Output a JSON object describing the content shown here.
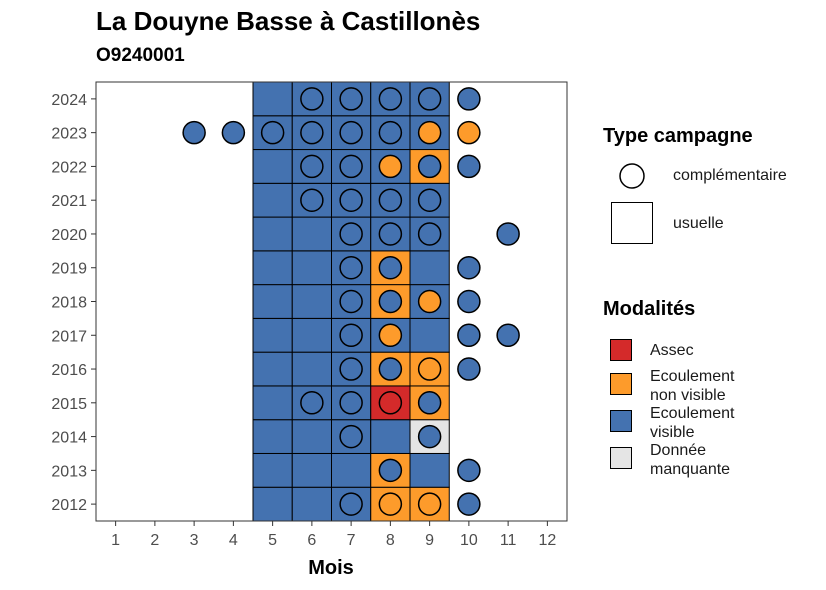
{
  "title": "La Douyne Basse à Castillonès",
  "subtitle": "O9240001",
  "chart_data": {
    "type": "heatmap",
    "xlabel": "Mois",
    "ylabel": "",
    "x_ticks": [
      "1",
      "2",
      "3",
      "4",
      "5",
      "6",
      "7",
      "8",
      "9",
      "10",
      "11",
      "12"
    ],
    "y_ticks": [
      "2012",
      "2013",
      "2014",
      "2015",
      "2016",
      "2017",
      "2018",
      "2019",
      "2020",
      "2021",
      "2022",
      "2023",
      "2024"
    ],
    "xlim": [
      0.5,
      12.5
    ],
    "ylim": [
      2011.5,
      2024.5
    ],
    "colors": {
      "Assec": "#d42a2a",
      "Ecoulement non visible": "#fd9b2b",
      "Ecoulement visible": "#4472b0",
      "Donnée manquante": "#e5e5e5"
    },
    "cells": [
      {
        "year": 2012,
        "month": 5,
        "mod": "Ecoulement visible",
        "type": "usuelle"
      },
      {
        "year": 2012,
        "month": 6,
        "mod": "Ecoulement visible",
        "type": "usuelle"
      },
      {
        "year": 2012,
        "month": 7,
        "mod": "Ecoulement visible",
        "type": "usuelle"
      },
      {
        "year": 2012,
        "month": 8,
        "mod": "Ecoulement non visible",
        "type": "usuelle"
      },
      {
        "year": 2012,
        "month": 9,
        "mod": "Ecoulement non visible",
        "type": "usuelle"
      },
      {
        "year": 2013,
        "month": 5,
        "mod": "Ecoulement visible",
        "type": "usuelle"
      },
      {
        "year": 2013,
        "month": 6,
        "mod": "Ecoulement visible",
        "type": "usuelle"
      },
      {
        "year": 2013,
        "month": 7,
        "mod": "Ecoulement visible",
        "type": "usuelle"
      },
      {
        "year": 2013,
        "month": 8,
        "mod": "Ecoulement non visible",
        "type": "usuelle"
      },
      {
        "year": 2013,
        "month": 9,
        "mod": "Ecoulement visible",
        "type": "usuelle"
      },
      {
        "year": 2014,
        "month": 5,
        "mod": "Ecoulement visible",
        "type": "usuelle"
      },
      {
        "year": 2014,
        "month": 6,
        "mod": "Ecoulement visible",
        "type": "usuelle"
      },
      {
        "year": 2014,
        "month": 7,
        "mod": "Ecoulement visible",
        "type": "usuelle"
      },
      {
        "year": 2014,
        "month": 8,
        "mod": "Ecoulement visible",
        "type": "usuelle"
      },
      {
        "year": 2014,
        "month": 9,
        "mod": "Donnée manquante",
        "type": "usuelle"
      },
      {
        "year": 2015,
        "month": 5,
        "mod": "Ecoulement visible",
        "type": "usuelle"
      },
      {
        "year": 2015,
        "month": 6,
        "mod": "Ecoulement visible",
        "type": "usuelle"
      },
      {
        "year": 2015,
        "month": 7,
        "mod": "Ecoulement visible",
        "type": "usuelle"
      },
      {
        "year": 2015,
        "month": 8,
        "mod": "Assec",
        "type": "usuelle"
      },
      {
        "year": 2015,
        "month": 9,
        "mod": "Ecoulement non visible",
        "type": "usuelle"
      },
      {
        "year": 2016,
        "month": 5,
        "mod": "Ecoulement visible",
        "type": "usuelle"
      },
      {
        "year": 2016,
        "month": 6,
        "mod": "Ecoulement visible",
        "type": "usuelle"
      },
      {
        "year": 2016,
        "month": 7,
        "mod": "Ecoulement visible",
        "type": "usuelle"
      },
      {
        "year": 2016,
        "month": 8,
        "mod": "Ecoulement non visible",
        "type": "usuelle"
      },
      {
        "year": 2016,
        "month": 9,
        "mod": "Ecoulement non visible",
        "type": "usuelle"
      },
      {
        "year": 2017,
        "month": 5,
        "mod": "Ecoulement visible",
        "type": "usuelle"
      },
      {
        "year": 2017,
        "month": 6,
        "mod": "Ecoulement visible",
        "type": "usuelle"
      },
      {
        "year": 2017,
        "month": 7,
        "mod": "Ecoulement visible",
        "type": "usuelle"
      },
      {
        "year": 2017,
        "month": 8,
        "mod": "Ecoulement visible",
        "type": "usuelle"
      },
      {
        "year": 2017,
        "month": 9,
        "mod": "Ecoulement visible",
        "type": "usuelle"
      },
      {
        "year": 2018,
        "month": 5,
        "mod": "Ecoulement visible",
        "type": "usuelle"
      },
      {
        "year": 2018,
        "month": 6,
        "mod": "Ecoulement visible",
        "type": "usuelle"
      },
      {
        "year": 2018,
        "month": 7,
        "mod": "Ecoulement visible",
        "type": "usuelle"
      },
      {
        "year": 2018,
        "month": 8,
        "mod": "Ecoulement non visible",
        "type": "usuelle"
      },
      {
        "year": 2018,
        "month": 9,
        "mod": "Ecoulement visible",
        "type": "usuelle"
      },
      {
        "year": 2019,
        "month": 5,
        "mod": "Ecoulement visible",
        "type": "usuelle"
      },
      {
        "year": 2019,
        "month": 6,
        "mod": "Ecoulement visible",
        "type": "usuelle"
      },
      {
        "year": 2019,
        "month": 7,
        "mod": "Ecoulement visible",
        "type": "usuelle"
      },
      {
        "year": 2019,
        "month": 8,
        "mod": "Ecoulement non visible",
        "type": "usuelle"
      },
      {
        "year": 2019,
        "month": 9,
        "mod": "Ecoulement visible",
        "type": "usuelle"
      },
      {
        "year": 2020,
        "month": 5,
        "mod": "Ecoulement visible",
        "type": "usuelle"
      },
      {
        "year": 2020,
        "month": 6,
        "mod": "Ecoulement visible",
        "type": "usuelle"
      },
      {
        "year": 2020,
        "month": 7,
        "mod": "Ecoulement visible",
        "type": "usuelle"
      },
      {
        "year": 2020,
        "month": 8,
        "mod": "Ecoulement visible",
        "type": "usuelle"
      },
      {
        "year": 2020,
        "month": 9,
        "mod": "Ecoulement visible",
        "type": "usuelle"
      },
      {
        "year": 2021,
        "month": 5,
        "mod": "Ecoulement visible",
        "type": "usuelle"
      },
      {
        "year": 2021,
        "month": 6,
        "mod": "Ecoulement visible",
        "type": "usuelle"
      },
      {
        "year": 2021,
        "month": 7,
        "mod": "Ecoulement visible",
        "type": "usuelle"
      },
      {
        "year": 2021,
        "month": 8,
        "mod": "Ecoulement visible",
        "type": "usuelle"
      },
      {
        "year": 2021,
        "month": 9,
        "mod": "Ecoulement visible",
        "type": "usuelle"
      },
      {
        "year": 2022,
        "month": 5,
        "mod": "Ecoulement visible",
        "type": "usuelle"
      },
      {
        "year": 2022,
        "month": 6,
        "mod": "Ecoulement visible",
        "type": "usuelle"
      },
      {
        "year": 2022,
        "month": 7,
        "mod": "Ecoulement visible",
        "type": "usuelle"
      },
      {
        "year": 2022,
        "month": 8,
        "mod": "Ecoulement visible",
        "type": "usuelle"
      },
      {
        "year": 2022,
        "month": 9,
        "mod": "Ecoulement non visible",
        "type": "usuelle"
      },
      {
        "year": 2023,
        "month": 5,
        "mod": "Ecoulement visible",
        "type": "usuelle"
      },
      {
        "year": 2023,
        "month": 6,
        "mod": "Ecoulement visible",
        "type": "usuelle"
      },
      {
        "year": 2023,
        "month": 7,
        "mod": "Ecoulement visible",
        "type": "usuelle"
      },
      {
        "year": 2023,
        "month": 8,
        "mod": "Ecoulement visible",
        "type": "usuelle"
      },
      {
        "year": 2023,
        "month": 9,
        "mod": "Ecoulement visible",
        "type": "usuelle"
      },
      {
        "year": 2024,
        "month": 5,
        "mod": "Ecoulement visible",
        "type": "usuelle"
      },
      {
        "year": 2024,
        "month": 6,
        "mod": "Ecoulement visible",
        "type": "usuelle"
      },
      {
        "year": 2024,
        "month": 7,
        "mod": "Ecoulement visible",
        "type": "usuelle"
      },
      {
        "year": 2024,
        "month": 8,
        "mod": "Ecoulement visible",
        "type": "usuelle"
      },
      {
        "year": 2024,
        "month": 9,
        "mod": "Ecoulement visible",
        "type": "usuelle"
      }
    ],
    "points": [
      {
        "year": 2012,
        "month": 7,
        "mod": "Ecoulement visible",
        "type": "complémentaire"
      },
      {
        "year": 2012,
        "month": 8,
        "mod": "Ecoulement non visible",
        "type": "complémentaire"
      },
      {
        "year": 2012,
        "month": 9,
        "mod": "Ecoulement non visible",
        "type": "complémentaire"
      },
      {
        "year": 2012,
        "month": 10,
        "mod": "Ecoulement visible",
        "type": "complémentaire"
      },
      {
        "year": 2013,
        "month": 8,
        "mod": "Ecoulement visible",
        "type": "complémentaire"
      },
      {
        "year": 2013,
        "month": 10,
        "mod": "Ecoulement visible",
        "type": "complémentaire"
      },
      {
        "year": 2014,
        "month": 7,
        "mod": "Ecoulement visible",
        "type": "complémentaire"
      },
      {
        "year": 2014,
        "month": 9,
        "mod": "Ecoulement visible",
        "type": "complémentaire"
      },
      {
        "year": 2015,
        "month": 6,
        "mod": "Ecoulement visible",
        "type": "complémentaire"
      },
      {
        "year": 2015,
        "month": 7,
        "mod": "Ecoulement visible",
        "type": "complémentaire"
      },
      {
        "year": 2015,
        "month": 8,
        "mod": "Assec",
        "type": "complémentaire"
      },
      {
        "year": 2015,
        "month": 9,
        "mod": "Ecoulement visible",
        "type": "complémentaire"
      },
      {
        "year": 2016,
        "month": 7,
        "mod": "Ecoulement visible",
        "type": "complémentaire"
      },
      {
        "year": 2016,
        "month": 8,
        "mod": "Ecoulement visible",
        "type": "complémentaire"
      },
      {
        "year": 2016,
        "month": 9,
        "mod": "Ecoulement non visible",
        "type": "complémentaire"
      },
      {
        "year": 2016,
        "month": 10,
        "mod": "Ecoulement visible",
        "type": "complémentaire"
      },
      {
        "year": 2017,
        "month": 7,
        "mod": "Ecoulement visible",
        "type": "complémentaire"
      },
      {
        "year": 2017,
        "month": 8,
        "mod": "Ecoulement non visible",
        "type": "complémentaire"
      },
      {
        "year": 2017,
        "month": 10,
        "mod": "Ecoulement visible",
        "type": "complémentaire"
      },
      {
        "year": 2017,
        "month": 11,
        "mod": "Ecoulement visible",
        "type": "complémentaire"
      },
      {
        "year": 2018,
        "month": 7,
        "mod": "Ecoulement visible",
        "type": "complémentaire"
      },
      {
        "year": 2018,
        "month": 8,
        "mod": "Ecoulement visible",
        "type": "complémentaire"
      },
      {
        "year": 2018,
        "month": 9,
        "mod": "Ecoulement non visible",
        "type": "complémentaire"
      },
      {
        "year": 2018,
        "month": 10,
        "mod": "Ecoulement visible",
        "type": "complémentaire"
      },
      {
        "year": 2019,
        "month": 7,
        "mod": "Ecoulement visible",
        "type": "complémentaire"
      },
      {
        "year": 2019,
        "month": 8,
        "mod": "Ecoulement visible",
        "type": "complémentaire"
      },
      {
        "year": 2019,
        "month": 10,
        "mod": "Ecoulement visible",
        "type": "complémentaire"
      },
      {
        "year": 2020,
        "month": 7,
        "mod": "Ecoulement visible",
        "type": "complémentaire"
      },
      {
        "year": 2020,
        "month": 8,
        "mod": "Ecoulement visible",
        "type": "complémentaire"
      },
      {
        "year": 2020,
        "month": 9,
        "mod": "Ecoulement visible",
        "type": "complémentaire"
      },
      {
        "year": 2020,
        "month": 11,
        "mod": "Ecoulement visible",
        "type": "complémentaire"
      },
      {
        "year": 2021,
        "month": 6,
        "mod": "Ecoulement visible",
        "type": "complémentaire"
      },
      {
        "year": 2021,
        "month": 7,
        "mod": "Ecoulement visible",
        "type": "complémentaire"
      },
      {
        "year": 2021,
        "month": 8,
        "mod": "Ecoulement visible",
        "type": "complémentaire"
      },
      {
        "year": 2021,
        "month": 9,
        "mod": "Ecoulement visible",
        "type": "complémentaire"
      },
      {
        "year": 2022,
        "month": 6,
        "mod": "Ecoulement visible",
        "type": "complémentaire"
      },
      {
        "year": 2022,
        "month": 7,
        "mod": "Ecoulement visible",
        "type": "complémentaire"
      },
      {
        "year": 2022,
        "month": 8,
        "mod": "Ecoulement non visible",
        "type": "complémentaire"
      },
      {
        "year": 2022,
        "month": 9,
        "mod": "Ecoulement visible",
        "type": "complémentaire"
      },
      {
        "year": 2022,
        "month": 10,
        "mod": "Ecoulement visible",
        "type": "complémentaire"
      },
      {
        "year": 2023,
        "month": 3,
        "mod": "Ecoulement visible",
        "type": "complémentaire"
      },
      {
        "year": 2023,
        "month": 4,
        "mod": "Ecoulement visible",
        "type": "complémentaire"
      },
      {
        "year": 2023,
        "month": 5,
        "mod": "Ecoulement visible",
        "type": "complémentaire"
      },
      {
        "year": 2023,
        "month": 6,
        "mod": "Ecoulement visible",
        "type": "complémentaire"
      },
      {
        "year": 2023,
        "month": 7,
        "mod": "Ecoulement visible",
        "type": "complémentaire"
      },
      {
        "year": 2023,
        "month": 8,
        "mod": "Ecoulement visible",
        "type": "complémentaire"
      },
      {
        "year": 2023,
        "month": 9,
        "mod": "Ecoulement non visible",
        "type": "complémentaire"
      },
      {
        "year": 2023,
        "month": 10,
        "mod": "Ecoulement non visible",
        "type": "complémentaire"
      },
      {
        "year": 2024,
        "month": 6,
        "mod": "Ecoulement visible",
        "type": "complémentaire"
      },
      {
        "year": 2024,
        "month": 7,
        "mod": "Ecoulement visible",
        "type": "complémentaire"
      },
      {
        "year": 2024,
        "month": 8,
        "mod": "Ecoulement visible",
        "type": "complémentaire"
      },
      {
        "year": 2024,
        "month": 9,
        "mod": "Ecoulement visible",
        "type": "complémentaire"
      },
      {
        "year": 2024,
        "month": 10,
        "mod": "Ecoulement visible",
        "type": "complémentaire"
      }
    ]
  },
  "legend": {
    "type_title": "Type campagne",
    "type_complementaire": "complémentaire",
    "type_usuelle": "usuelle",
    "mod_title": "Modalités",
    "mod_assec": "Assec",
    "mod_env_line1": "Ecoulement",
    "mod_env_line2": "non visible",
    "mod_ev_line1": "Ecoulement",
    "mod_ev_line2": "visible",
    "mod_dm_line1": "Donnée",
    "mod_dm_line2": "manquante"
  }
}
